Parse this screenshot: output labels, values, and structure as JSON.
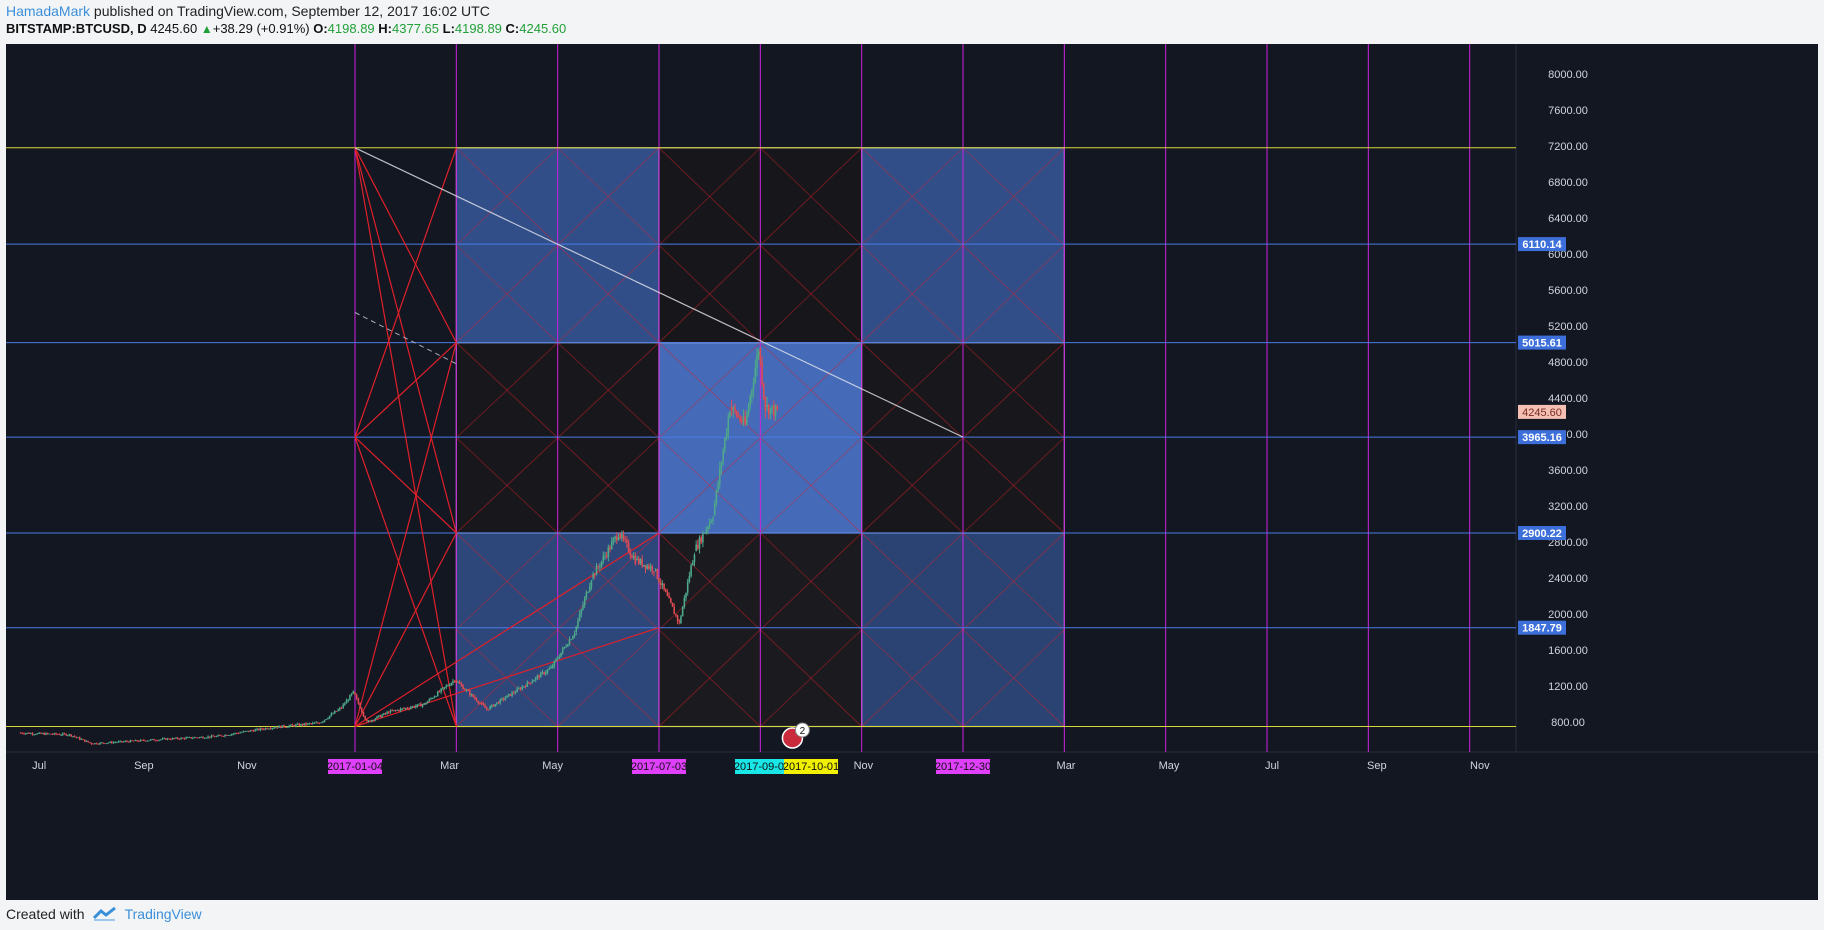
{
  "header": {
    "author": "HamadaMark",
    "published_text": "published on TradingView.com, September 12, 2017 16:02 UTC",
    "symbol": "BITSTAMP:BTCUSD, D",
    "last": "4245.60",
    "change": "+38.29 (+0.91%)",
    "open_label": "O:",
    "open": "4198.89",
    "high_label": "H:",
    "high": "4377.65",
    "low_label": "L:",
    "low": "4198.89",
    "close_label": "C:",
    "close": "4245.60"
  },
  "footer": {
    "created_with": "Created with",
    "brand": "TradingView"
  },
  "colors": {
    "background": "#131722",
    "grid_magenta": "#cc22dd",
    "blue_box": "#3f67b5",
    "blue_level": "#4a7ae6",
    "yellow_level": "#d8d83a",
    "fan_red": "#e0202a",
    "candle_up": "#4ea88a",
    "candle_down": "#e04a52"
  },
  "chart_data": {
    "type": "candlestick",
    "y_axis": {
      "ticks": [
        800,
        1200,
        1600,
        2000,
        2400,
        2800,
        3200,
        3600,
        4000,
        4400,
        4800,
        5200,
        5600,
        6000,
        6400,
        6800,
        7200,
        7600,
        8000
      ],
      "tick_labels": [
        "800.00",
        "1200.00",
        "1600.00",
        "2000.00",
        "2400.00",
        "2800.00",
        "3200.00",
        "3600.00",
        "4000.00",
        "4400.00",
        "4800.00",
        "5200.00",
        "5600.00",
        "6000.00",
        "6400.00",
        "6800.00",
        "7200.00",
        "7600.00",
        "8000.00"
      ]
    },
    "x_axis": {
      "month_labels": [
        "Jul",
        "Sep",
        "Nov",
        "Mar",
        "May",
        "Nov",
        "Mar",
        "May",
        "Jul",
        "Sep",
        "Nov"
      ],
      "month_dates": [
        "2016-07-01",
        "2016-09-01",
        "2016-11-01",
        "2017-03-01",
        "2017-05-01",
        "2017-11-01",
        "2018-03-01",
        "2018-05-01",
        "2018-07-01",
        "2018-09-01",
        "2018-11-01"
      ],
      "highlighted_dates": [
        {
          "label": "2017-01-04",
          "color": "#e040fb"
        },
        {
          "label": "2017-07-03",
          "color": "#e040fb"
        },
        {
          "label": "2017-09-02",
          "color": "#19e6e6"
        },
        {
          "label": "2017-10-01",
          "color": "#f0f000"
        },
        {
          "label": "2017-12-30",
          "color": "#e040fb"
        }
      ]
    },
    "vertical_grid_dates": [
      "2017-01-04",
      "2017-03-05",
      "2017-05-04",
      "2017-07-03",
      "2017-09-01",
      "2017-10-31",
      "2017-12-30",
      "2018-02-28",
      "2018-04-29",
      "2018-06-28",
      "2018-08-27",
      "2018-10-26"
    ],
    "horizontal_levels": [
      {
        "value": 7180,
        "color": "#d8d83a"
      },
      {
        "value": 6110.14,
        "color": "#4a7ae6",
        "label": "6110.14"
      },
      {
        "value": 5015.61,
        "color": "#4a7ae6",
        "label": "5015.61"
      },
      {
        "value": 3965.16,
        "color": "#4a7ae6",
        "label": "3965.16"
      },
      {
        "value": 2900.22,
        "color": "#4a7ae6",
        "label": "2900.22"
      },
      {
        "value": 1847.79,
        "color": "#4a7ae6",
        "label": "1847.79"
      },
      {
        "value": 750,
        "color": "#d8d83a"
      }
    ],
    "current_price": {
      "value": 4245.6,
      "label": "4245.60"
    },
    "grid_boxes": {
      "columns": [
        "2017-01-04",
        "2017-03-05",
        "2017-07-03",
        "2017-10-31",
        "2018-02-28"
      ],
      "rows": [
        750,
        2900.22,
        5015.61,
        7180
      ]
    },
    "event_badge": "2",
    "price_path": [
      [
        "2016-06-20",
        680
      ],
      [
        "2016-07-01",
        670
      ],
      [
        "2016-07-20",
        660
      ],
      [
        "2016-08-02",
        560
      ],
      [
        "2016-08-20",
        580
      ],
      [
        "2016-09-15",
        610
      ],
      [
        "2016-10-15",
        640
      ],
      [
        "2016-11-15",
        735
      ],
      [
        "2016-12-15",
        790
      ],
      [
        "2016-12-28",
        960
      ],
      [
        "2017-01-04",
        1130
      ],
      [
        "2017-01-12",
        800
      ],
      [
        "2017-01-25",
        910
      ],
      [
        "2017-02-15",
        1000
      ],
      [
        "2017-03-05",
        1270
      ],
      [
        "2017-03-24",
        940
      ],
      [
        "2017-04-15",
        1200
      ],
      [
        "2017-05-01",
        1400
      ],
      [
        "2017-05-15",
        1800
      ],
      [
        "2017-05-25",
        2400
      ],
      [
        "2017-06-10",
        2900
      ],
      [
        "2017-06-20",
        2600
      ],
      [
        "2017-07-01",
        2500
      ],
      [
        "2017-07-16",
        1900
      ],
      [
        "2017-07-25",
        2700
      ],
      [
        "2017-08-05",
        3100
      ],
      [
        "2017-08-15",
        4300
      ],
      [
        "2017-08-24",
        4100
      ],
      [
        "2017-09-01",
        4950
      ],
      [
        "2017-09-05",
        4300
      ],
      [
        "2017-09-12",
        4245.6
      ]
    ]
  }
}
